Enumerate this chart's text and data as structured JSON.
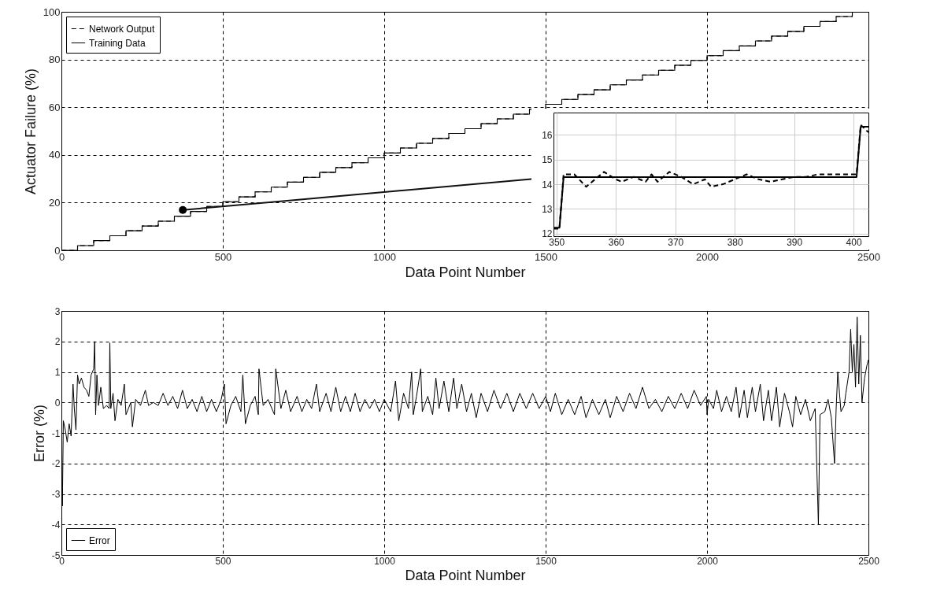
{
  "chart_data": [
    {
      "type": "step",
      "xlabel": "Data Point Number",
      "ylabel": "Actuator Failure (%)",
      "xlim": [
        0,
        2500
      ],
      "xticks": [
        0,
        500,
        1000,
        1500,
        2000,
        2500
      ],
      "ylim": [
        0,
        100
      ],
      "yticks": [
        0,
        20,
        40,
        60,
        80,
        100
      ],
      "grid": true,
      "legend": "top left",
      "x": [
        0,
        50,
        100,
        150,
        200,
        250,
        300,
        350,
        400,
        450,
        500,
        550,
        600,
        650,
        700,
        750,
        800,
        850,
        900,
        950,
        1000,
        1050,
        1100,
        1150,
        1200,
        1250,
        1300,
        1350,
        1400,
        1450,
        1500,
        1550,
        1600,
        1650,
        1700,
        1750,
        1800,
        1850,
        1900,
        1950,
        2000,
        2050,
        2100,
        2150,
        2200,
        2250,
        2300,
        2350,
        2400,
        2450,
        2500
      ],
      "series": [
        {
          "name": "Network Output",
          "color": "#000000",
          "line_style": "dashed",
          "values": [
            0,
            2,
            4.1,
            6.1,
            8.2,
            10.2,
            12.2,
            14.3,
            16.3,
            18.4,
            20.4,
            22.4,
            24.5,
            26.5,
            28.6,
            30.6,
            32.7,
            34.7,
            36.7,
            38.8,
            40.8,
            42.9,
            44.9,
            46.9,
            49,
            51,
            53.1,
            55.1,
            57.1,
            59.2,
            61.2,
            63.3,
            65.3,
            67.3,
            69.4,
            71.4,
            73.5,
            75.5,
            77.6,
            79.6,
            81.6,
            83.7,
            85.7,
            87.8,
            89.8,
            91.8,
            93.9,
            95.9,
            98,
            100,
            100
          ]
        },
        {
          "name": "Training Data",
          "color": "#000000",
          "line_style": "solid",
          "values": [
            0,
            2,
            4.1,
            6.1,
            8.2,
            10.2,
            12.2,
            14.3,
            16.3,
            18.4,
            20.4,
            22.4,
            24.5,
            26.5,
            28.6,
            30.6,
            32.7,
            34.7,
            36.7,
            38.8,
            40.8,
            42.9,
            44.9,
            46.9,
            49,
            51,
            53.1,
            55.1,
            57.1,
            59.2,
            61.2,
            63.3,
            65.3,
            67.3,
            69.4,
            71.4,
            73.5,
            75.5,
            77.6,
            79.6,
            81.6,
            83.7,
            85.7,
            87.8,
            89.8,
            91.8,
            93.9,
            95.9,
            98,
            100,
            100
          ]
        }
      ]
    },
    {
      "type": "line",
      "xlim": [
        349.5,
        402.5
      ],
      "xticks": [
        350,
        360,
        370,
        380,
        390,
        400
      ],
      "ylim": [
        11.9,
        16.9
      ],
      "yticks": [
        12,
        13,
        14,
        15,
        16
      ],
      "grid": true,
      "series": [
        {
          "color": "#000000",
          "line_style": "solid",
          "x": [
            349.5,
            350.5,
            351.2,
            400.5,
            401.2,
            402.5
          ],
          "values": [
            12.24,
            12.24,
            14.29,
            14.29,
            16.33,
            16.33
          ]
        },
        {
          "color": "#000000",
          "line_style": "dashed",
          "x": [
            349.5,
            350.5,
            351.2,
            353,
            355,
            357,
            358,
            360,
            361,
            363,
            365,
            366,
            367,
            369,
            371,
            373,
            375,
            376,
            378,
            380,
            382,
            384,
            386,
            388,
            390,
            392,
            394,
            396,
            398,
            400.5,
            401.2,
            402.5
          ],
          "values": [
            12.2,
            12.2,
            14.4,
            14.4,
            13.9,
            14.3,
            14.5,
            14.2,
            14.1,
            14.3,
            14.1,
            14.4,
            14.1,
            14.5,
            14.3,
            14.0,
            14.2,
            13.9,
            14.0,
            14.2,
            14.4,
            14.2,
            14.1,
            14.2,
            14.3,
            14.3,
            14.4,
            14.4,
            14.4,
            14.4,
            16.4,
            16.1
          ]
        }
      ]
    },
    {
      "type": "line",
      "xlabel": "Data Point Number",
      "ylabel": "Error (%)",
      "xlim": [
        0,
        2500
      ],
      "xticks": [
        0,
        500,
        1000,
        1500,
        2000,
        2500
      ],
      "ylim": [
        -5,
        3
      ],
      "yticks": [
        -5,
        -4,
        -3,
        -2,
        -1,
        0,
        1,
        2,
        3
      ],
      "grid": true,
      "legend": "bottom left",
      "series": [
        {
          "name": "Error",
          "color": "#000000",
          "line_style": "solid",
          "x": [
            0,
            3,
            6,
            12,
            18,
            24,
            30,
            36,
            40,
            45,
            50,
            55,
            62,
            70,
            78,
            85,
            92,
            100,
            103,
            106,
            110,
            115,
            122,
            130,
            140,
            148,
            150,
            153,
            160,
            166,
            175,
            185,
            195,
            200,
            215,
            220,
            230,
            245,
            260,
            270,
            285,
            300,
            315,
            330,
            345,
            360,
            375,
            390,
            405,
            420,
            435,
            450,
            465,
            480,
            495,
            505,
            510,
            525,
            540,
            556,
            562,
            570,
            585,
            600,
            610,
            612,
            625,
            640,
            660,
            664,
            680,
            695,
            710,
            730,
            745,
            760,
            775,
            790,
            800,
            820,
            835,
            850,
            865,
            880,
            895,
            910,
            925,
            940,
            955,
            970,
            985,
            1000,
            1020,
            1035,
            1045,
            1060,
            1075,
            1085,
            1090,
            1100,
            1113,
            1118,
            1135,
            1150,
            1160,
            1170,
            1185,
            1200,
            1215,
            1225,
            1240,
            1255,
            1270,
            1285,
            1300,
            1320,
            1340,
            1360,
            1380,
            1400,
            1420,
            1440,
            1460,
            1480,
            1500,
            1515,
            1530,
            1550,
            1570,
            1590,
            1610,
            1625,
            1645,
            1665,
            1685,
            1700,
            1720,
            1740,
            1760,
            1780,
            1800,
            1820,
            1840,
            1860,
            1880,
            1900,
            1920,
            1940,
            1960,
            1980,
            1998,
            2000,
            2005,
            2020,
            2030,
            2045,
            2060,
            2075,
            2090,
            2100,
            2115,
            2125,
            2140,
            2150,
            2165,
            2175,
            2190,
            2200,
            2215,
            2225,
            2240,
            2255,
            2265,
            2275,
            2290,
            2305,
            2320,
            2335,
            2345,
            2350,
            2365,
            2375,
            2385,
            2395,
            2400,
            2405,
            2415,
            2425,
            2430,
            2440,
            2445,
            2450,
            2455,
            2460,
            2465,
            2470,
            2475,
            2480,
            2488,
            2495,
            2500
          ],
          "values": [
            -0.5,
            -3.4,
            -0.6,
            -0.9,
            -1.3,
            -0.7,
            -1.1,
            0.6,
            -0.2,
            -0.9,
            0.9,
            0.6,
            0.8,
            0.5,
            0.4,
            0.2,
            0.9,
            1.1,
            2.0,
            -0.4,
            0.9,
            -0.1,
            0.5,
            -0.2,
            -0.1,
            -0.2,
            1.95,
            -0.2,
            0.3,
            -0.6,
            0.1,
            -0.1,
            0.6,
            -0.4,
            0.0,
            -0.8,
            0.1,
            -0.1,
            0.4,
            -0.1,
            0.0,
            -0.1,
            0.3,
            -0.1,
            0.2,
            -0.2,
            0.4,
            -0.2,
            0.1,
            -0.3,
            0.2,
            -0.3,
            0.1,
            -0.3,
            0.1,
            0.6,
            -0.7,
            -0.1,
            0.2,
            -0.3,
            0.9,
            -0.7,
            -0.1,
            0.2,
            -0.4,
            1.1,
            -0.1,
            0.1,
            -0.4,
            1.1,
            -0.2,
            0.4,
            -0.3,
            0.2,
            -0.3,
            0.1,
            -0.2,
            0.6,
            -0.3,
            0.3,
            -0.3,
            0.5,
            -0.3,
            0.2,
            -0.3,
            0.3,
            -0.3,
            0.1,
            -0.2,
            0.1,
            -0.3,
            0.1,
            -0.3,
            0.7,
            -0.6,
            0.3,
            -0.2,
            1.0,
            -0.4,
            0.2,
            1.1,
            -0.3,
            0.2,
            -0.4,
            0.8,
            -0.2,
            0.7,
            -0.3,
            0.8,
            -0.2,
            0.6,
            -0.3,
            0.3,
            -0.5,
            0.3,
            -0.3,
            0.4,
            -0.2,
            0.3,
            -0.3,
            0.3,
            -0.2,
            0.3,
            -0.2,
            0.2,
            -0.3,
            0.3,
            -0.4,
            0.1,
            -0.4,
            0.2,
            -0.5,
            0.1,
            -0.4,
            0.1,
            -0.5,
            0.2,
            -0.3,
            0.3,
            -0.2,
            0.5,
            -0.2,
            0.1,
            -0.3,
            0.2,
            -0.2,
            0.3,
            -0.2,
            0.4,
            -0.1,
            0.2,
            -0.4,
            0.1,
            -0.2,
            0.4,
            -0.3,
            0.2,
            -0.3,
            0.5,
            -0.5,
            0.4,
            -0.5,
            0.5,
            -0.3,
            0.6,
            -0.6,
            0.4,
            -0.6,
            0.5,
            -0.8,
            0.3,
            -0.3,
            -0.8,
            0.2,
            -0.4,
            0.1,
            -0.6,
            -0.2,
            -4.0,
            -0.4,
            -0.3,
            0.1,
            -0.5,
            -2.0,
            -0.2,
            1.0,
            -0.3,
            -0.1,
            0.3,
            1.0,
            2.4,
            1.0,
            1.9,
            0.5,
            2.8,
            0.6,
            2.2,
            0.0,
            0.8,
            1.2,
            1.4
          ]
        }
      ]
    }
  ]
}
